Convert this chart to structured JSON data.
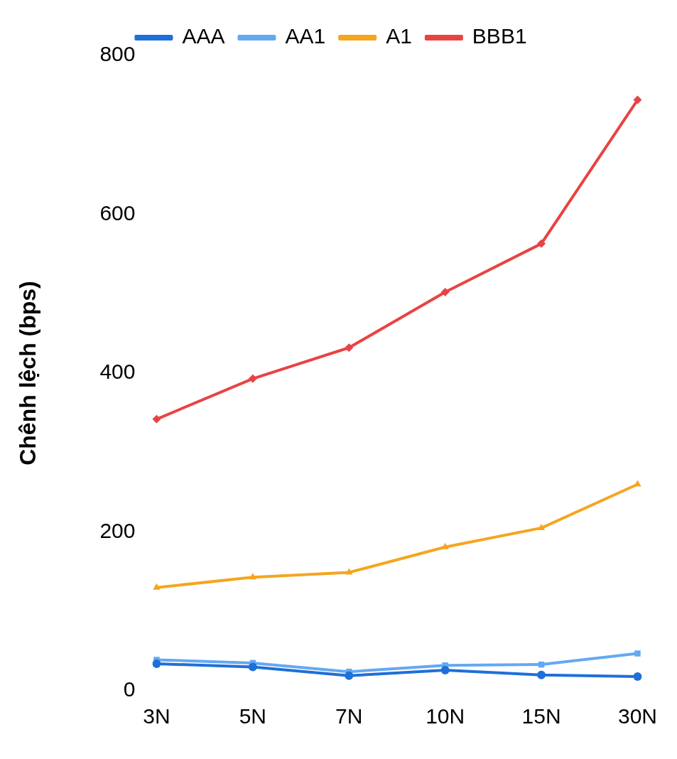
{
  "chart_data": {
    "type": "line",
    "ylabel": "Chênh lệch (bps)",
    "categories": [
      "3N",
      "5N",
      "7N",
      "10N",
      "15N",
      "30N"
    ],
    "series": [
      {
        "name": "AAA",
        "color": "#1f6fd8",
        "marker": "circle",
        "values": [
          34,
          30,
          19,
          26,
          20,
          18
        ]
      },
      {
        "name": "AA1",
        "color": "#64a8f2",
        "marker": "square",
        "values": [
          39,
          35,
          24,
          32,
          33,
          47
        ]
      },
      {
        "name": "A1",
        "color": "#f5a51e",
        "marker": "triangle",
        "values": [
          130,
          143,
          149,
          181,
          205,
          260
        ]
      },
      {
        "name": "BBB1",
        "color": "#e84343",
        "marker": "diamond",
        "values": [
          342,
          393,
          432,
          502,
          563,
          744
        ]
      }
    ],
    "ylim": [
      0,
      800
    ],
    "yticks": [
      0,
      200,
      400,
      600,
      800
    ],
    "grid": false,
    "legend": "top"
  }
}
